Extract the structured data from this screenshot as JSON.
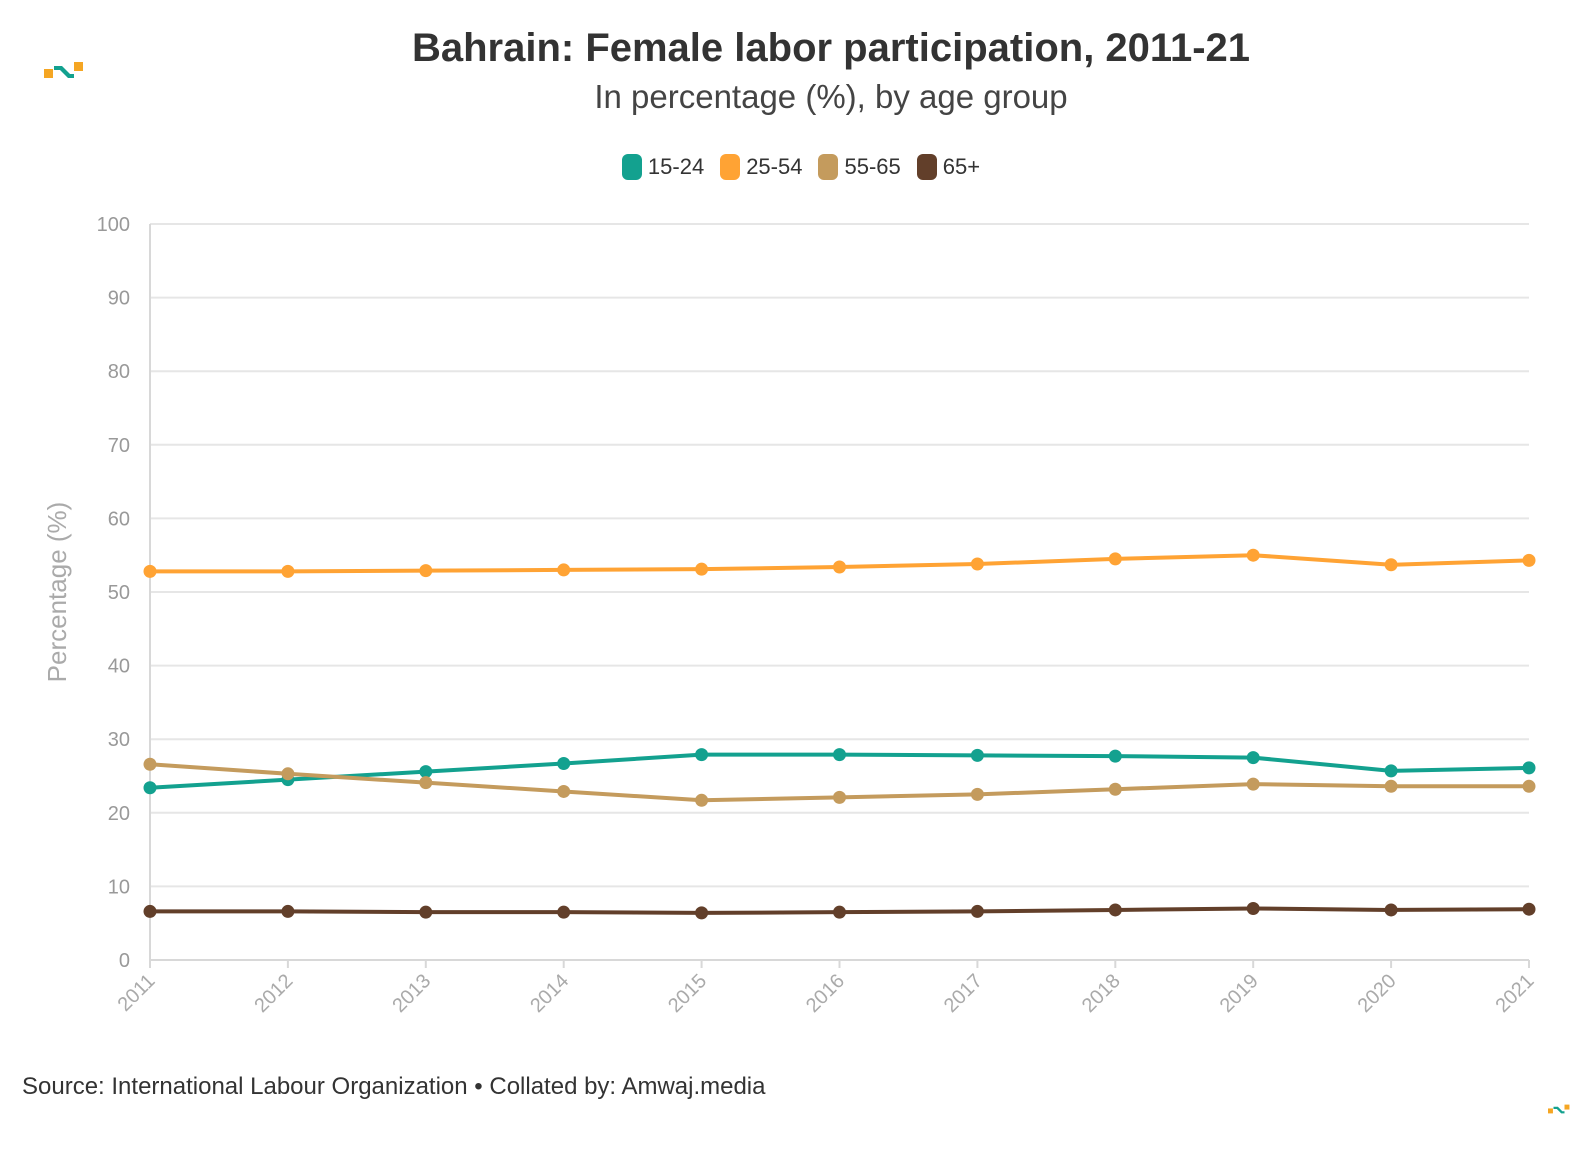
{
  "header": {
    "title": "Bahrain: Female labor participation, 2011-21",
    "subtitle": "In percentage (%), by age group"
  },
  "footer": {
    "source": "Source: International Labour Organization • Collated by: Amwaj.media"
  },
  "logo": {
    "icon": "amwaj-logo-icon",
    "colors": [
      "#f5a623",
      "#13a18f"
    ]
  },
  "chart_data": {
    "type": "line",
    "title": "Bahrain: Female labor participation, 2011-21",
    "subtitle": "In percentage (%), by age group",
    "xlabel": "",
    "ylabel": "Percentage (%)",
    "ylim": [
      0,
      100
    ],
    "yticks": [
      0,
      10,
      20,
      30,
      40,
      50,
      60,
      70,
      80,
      90,
      100
    ],
    "x": [
      "2011",
      "2012",
      "2013",
      "2014",
      "2015",
      "2016",
      "2017",
      "2018",
      "2019",
      "2020",
      "2021"
    ],
    "grid": true,
    "legend_position": "top-center",
    "series": [
      {
        "name": "15-24",
        "color": "#13a18f",
        "values": [
          23.4,
          24.5,
          25.6,
          26.7,
          27.9,
          27.9,
          27.8,
          27.7,
          27.5,
          25.7,
          26.1
        ]
      },
      {
        "name": "25-54",
        "color": "#ffa334",
        "values": [
          52.8,
          52.8,
          52.9,
          53.0,
          53.1,
          53.4,
          53.8,
          54.5,
          55.0,
          53.7,
          54.3
        ]
      },
      {
        "name": "55-65",
        "color": "#c49b5d",
        "values": [
          26.6,
          25.3,
          24.1,
          22.9,
          21.7,
          22.1,
          22.5,
          23.2,
          23.9,
          23.6,
          23.6
        ]
      },
      {
        "name": "65+",
        "color": "#623f2a",
        "values": [
          6.6,
          6.6,
          6.5,
          6.5,
          6.4,
          6.5,
          6.6,
          6.8,
          7.0,
          6.8,
          6.9
        ]
      }
    ]
  }
}
